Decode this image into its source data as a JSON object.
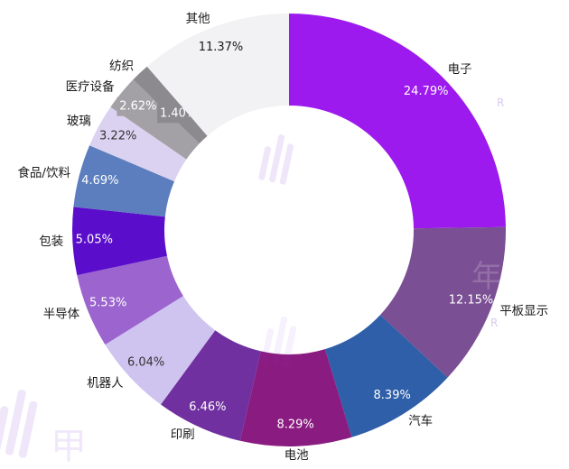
{
  "page": {
    "background": "#ffffff"
  },
  "chart_data": {
    "type": "pie",
    "subtype": "donut",
    "title": "",
    "legend": "none",
    "direction": "clockwise",
    "start_angle_deg": -90,
    "unit": "%",
    "total_pct": 100.0,
    "slices": [
      {
        "label": "电子",
        "value": 24.79,
        "pct_label": "24.79%",
        "color": "#9D1AEE",
        "value_text_color": "#ffffff"
      },
      {
        "label": "平板显示",
        "value": 12.15,
        "pct_label": "12.15%",
        "color": "#7A4F93",
        "value_text_color": "#ffffff"
      },
      {
        "label": "汽车",
        "value": 8.39,
        "pct_label": "8.39%",
        "color": "#2E5FA8",
        "value_text_color": "#ffffff"
      },
      {
        "label": "电池",
        "value": 8.29,
        "pct_label": "8.29%",
        "color": "#8A1B80",
        "value_text_color": "#ffffff"
      },
      {
        "label": "印刷",
        "value": 6.46,
        "pct_label": "6.46%",
        "color": "#7030A0",
        "value_text_color": "#ffffff"
      },
      {
        "label": "机器人",
        "value": 6.04,
        "pct_label": "6.04%",
        "color": "#CFC3EF",
        "value_text_color": "#333333"
      },
      {
        "label": "半导体",
        "value": 5.53,
        "pct_label": "5.53%",
        "color": "#9C64CE",
        "value_text_color": "#ffffff"
      },
      {
        "label": "包装",
        "value": 5.05,
        "pct_label": "5.05%",
        "color": "#5A0ECB",
        "value_text_color": "#ffffff"
      },
      {
        "label": "食品/饮料",
        "value": 4.69,
        "pct_label": "4.69%",
        "color": "#5C7EBE",
        "value_text_color": "#ffffff"
      },
      {
        "label": "玻璃",
        "value": 3.22,
        "pct_label": "3.22%",
        "color": "#DAD2F0",
        "value_text_color": "#333333"
      },
      {
        "label": "医疗设备",
        "value": 2.62,
        "pct_label": "2.62%",
        "color": "#A3A1A5",
        "value_text_color": "#ffffff",
        "callout": true
      },
      {
        "label": "纺织",
        "value": 1.4,
        "pct_label": "1.40%",
        "color": "#8C8A8E",
        "value_text_color": "#ffffff",
        "callout": true
      },
      {
        "label": "其他",
        "value": 11.37,
        "pct_label": "11.37%",
        "color": "#F2F1F3",
        "value_text_color": "#1a1a1a"
      }
    ]
  },
  "watermark": {
    "color": "#8A4BD8",
    "char_1": "甲",
    "char_2": "年",
    "char_3": "甲",
    "letter_1": "R",
    "letter_2": "R"
  }
}
